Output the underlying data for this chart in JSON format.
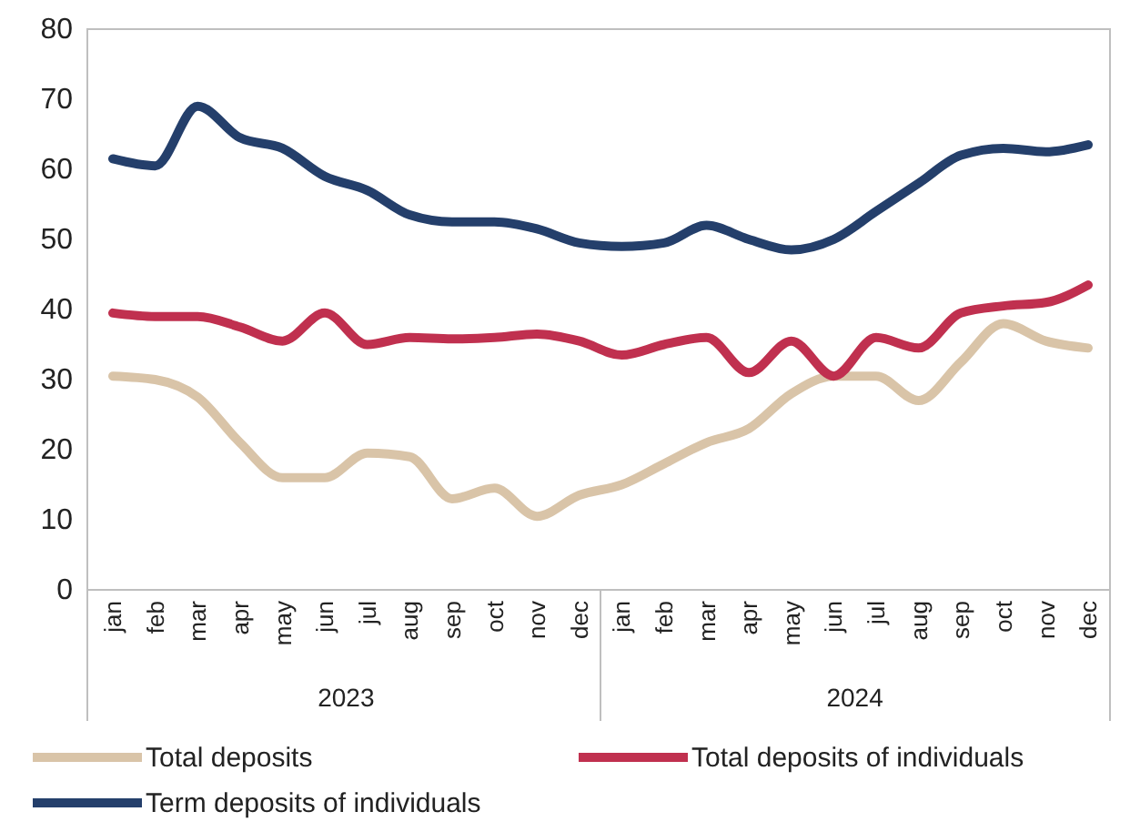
{
  "chart_data": {
    "type": "line",
    "categories": [
      "jan",
      "feb",
      "mar",
      "apr",
      "may",
      "jun",
      "jul",
      "aug",
      "sep",
      "oct",
      "nov",
      "dec",
      "jan",
      "feb",
      "mar",
      "apr",
      "may",
      "jun",
      "jul",
      "aug",
      "sep",
      "oct",
      "nov",
      "dec"
    ],
    "annotations": [
      "2023",
      "2024"
    ],
    "ylim": [
      0,
      80
    ],
    "yticks": [
      0,
      10,
      20,
      30,
      40,
      50,
      60,
      70,
      80
    ],
    "grid": false,
    "legend": "bottom",
    "marker": "none",
    "line_style": "solid",
    "series": [
      {
        "name": "Total deposits",
        "color": "#d9c4a8",
        "values": [
          30.5,
          30,
          27.5,
          21,
          16,
          16,
          19.5,
          19,
          13,
          14.5,
          10.5,
          13.5,
          15,
          18,
          21,
          23,
          28,
          30.5,
          30.5,
          27,
          32.5,
          38,
          35.5,
          34.5
        ]
      },
      {
        "name": "Total deposits of individuals",
        "color": "#c0304f",
        "values": [
          39.5,
          39,
          39,
          37.5,
          35.5,
          39.5,
          35,
          36,
          35.8,
          36,
          36.5,
          35.5,
          33.5,
          35,
          36,
          31,
          35.5,
          30.5,
          36,
          34.5,
          39.5,
          40.5,
          41,
          43.5
        ]
      },
      {
        "name": "Term deposits of individuals",
        "color": "#243f6b",
        "values": [
          61.5,
          60.5,
          69,
          64.5,
          63,
          59,
          57,
          53.5,
          52.5,
          52.5,
          51.5,
          49.5,
          49,
          49.5,
          52,
          50,
          48.5,
          50,
          54,
          58,
          62,
          63,
          62.5,
          63.5
        ]
      }
    ]
  }
}
